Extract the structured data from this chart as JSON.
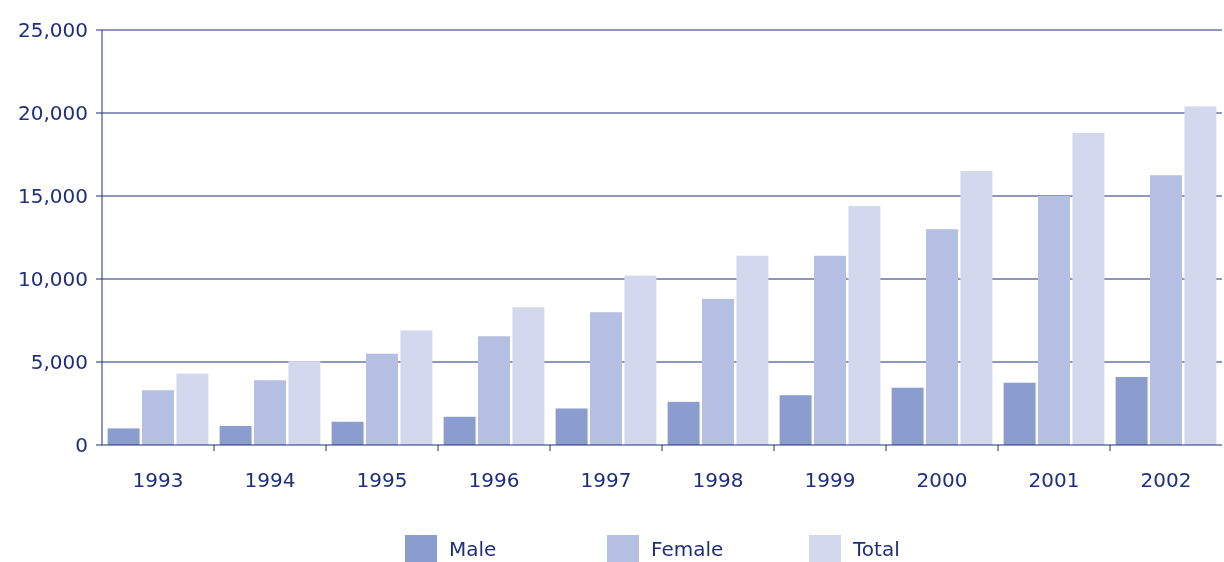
{
  "chart_data": {
    "type": "bar",
    "categories": [
      "1993",
      "1994",
      "1995",
      "1996",
      "1997",
      "1998",
      "1999",
      "2000",
      "2001",
      "2002"
    ],
    "series": [
      {
        "name": "Male",
        "color": "#8b9dcf",
        "values": [
          1000,
          1150,
          1400,
          1700,
          2200,
          2600,
          3000,
          3450,
          3750,
          4100
        ]
      },
      {
        "name": "Female",
        "color": "#b5bfe2",
        "values": [
          3300,
          3900,
          5500,
          6550,
          8000,
          8800,
          11400,
          13000,
          15000,
          16250
        ]
      },
      {
        "name": "Total",
        "color": "#d3d8ef",
        "values": [
          4300,
          5050,
          6900,
          8300,
          10200,
          11400,
          14400,
          16500,
          18800,
          20400
        ]
      }
    ],
    "ylim": [
      0,
      25000
    ],
    "yticks": [
      {
        "value": 0,
        "label": "0"
      },
      {
        "value": 5000,
        "label": "5,000"
      },
      {
        "value": 10000,
        "label": "10,000"
      },
      {
        "value": 15000,
        "label": "15,000"
      },
      {
        "value": 20000,
        "label": "20,000"
      },
      {
        "value": 25000,
        "label": "25,000"
      }
    ],
    "grid": "y",
    "legend": "bottom"
  }
}
